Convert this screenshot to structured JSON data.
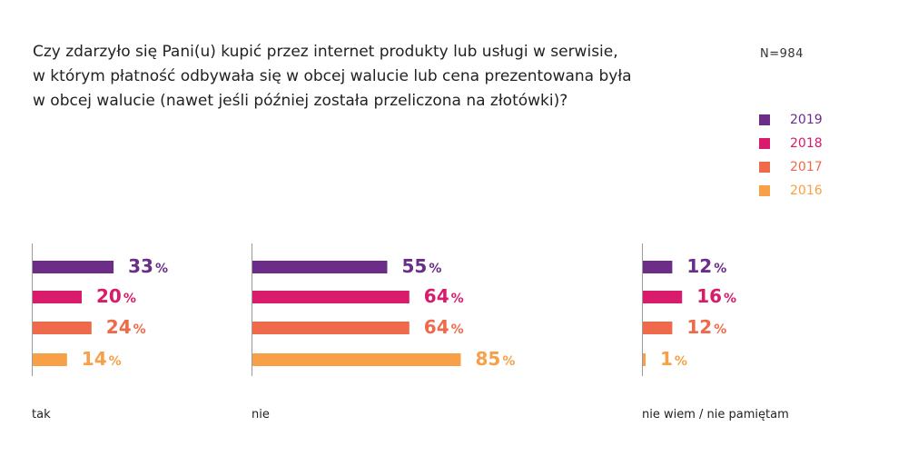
{
  "title_lines": [
    "Czy zdarzyło się Pani(u) kupić przez internet produkty lub usługi w serwisie,",
    "w którym płatność odbywała się w obcej walucie lub cena prezentowana była",
    "w obcej walucie (nawet jeśli później została przeliczona na złotówki)?"
  ],
  "sample_size": "N=984",
  "chart_data": {
    "type": "bar",
    "orientation": "horizontal",
    "title": "Czy zdarzyło się Pani(u) kupić przez internet produkty lub usługi w serwisie, w którym płatność odbywała się w obcej walucie lub cena prezentowana była w obcej walucie (nawet jeśli później została przeliczona na złotówki)?",
    "categories": [
      "tak",
      "nie",
      "nie wiem / nie pamiętam"
    ],
    "unit": "%",
    "series": [
      {
        "name": "2019",
        "color": "#6b2d87",
        "values": [
          33,
          55,
          12
        ]
      },
      {
        "name": "2018",
        "color": "#d81b6a",
        "values": [
          20,
          64,
          16
        ]
      },
      {
        "name": "2017",
        "color": "#ee6a4a",
        "values": [
          24,
          64,
          12
        ]
      },
      {
        "name": "2016",
        "color": "#f7a047",
        "values": [
          14,
          85,
          1
        ]
      }
    ],
    "legend_position": "right",
    "grid": false
  }
}
